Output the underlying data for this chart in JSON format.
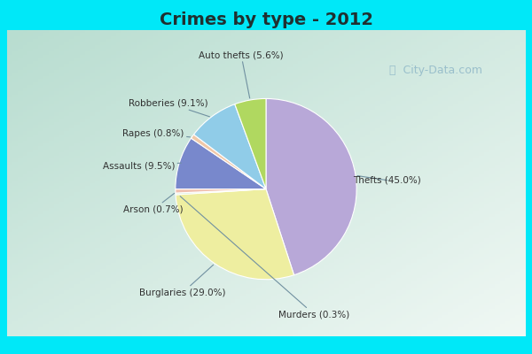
{
  "title": "Crimes by type - 2012",
  "labels": [
    "Thefts",
    "Burglaries",
    "Murders",
    "Arson",
    "Assaults",
    "Rapes",
    "Robberies",
    "Auto thefts"
  ],
  "values": [
    45.0,
    29.0,
    0.3,
    0.7,
    9.5,
    0.8,
    9.1,
    5.6
  ],
  "colors": [
    "#b8a8d8",
    "#eeeea0",
    "#d0ecd0",
    "#f0c0b0",
    "#7888cc",
    "#f0c8a8",
    "#90cce8",
    "#b0d860"
  ],
  "background_cyan": "#00e8f8",
  "background_main_tl": "#b8ddd0",
  "background_main_br": "#e8f4f0",
  "title_color": "#203030",
  "watermark_color": "#90b8c8",
  "label_color": "#303030",
  "line_color": "#7090a0",
  "startangle": 90,
  "label_positions": {
    "Thefts (45.0%)": [
      0.88,
      0.02
    ],
    "Burglaries (29.0%)": [
      -0.52,
      -0.75
    ],
    "Murders (0.3%)": [
      0.38,
      -0.9
    ],
    "Arson (0.7%)": [
      -0.72,
      -0.18
    ],
    "Assaults (9.5%)": [
      -0.82,
      0.12
    ],
    "Rapes (0.8%)": [
      -0.72,
      0.34
    ],
    "Robberies (9.1%)": [
      -0.62,
      0.55
    ],
    "Auto thefts (5.6%)": [
      -0.12,
      0.88
    ]
  }
}
